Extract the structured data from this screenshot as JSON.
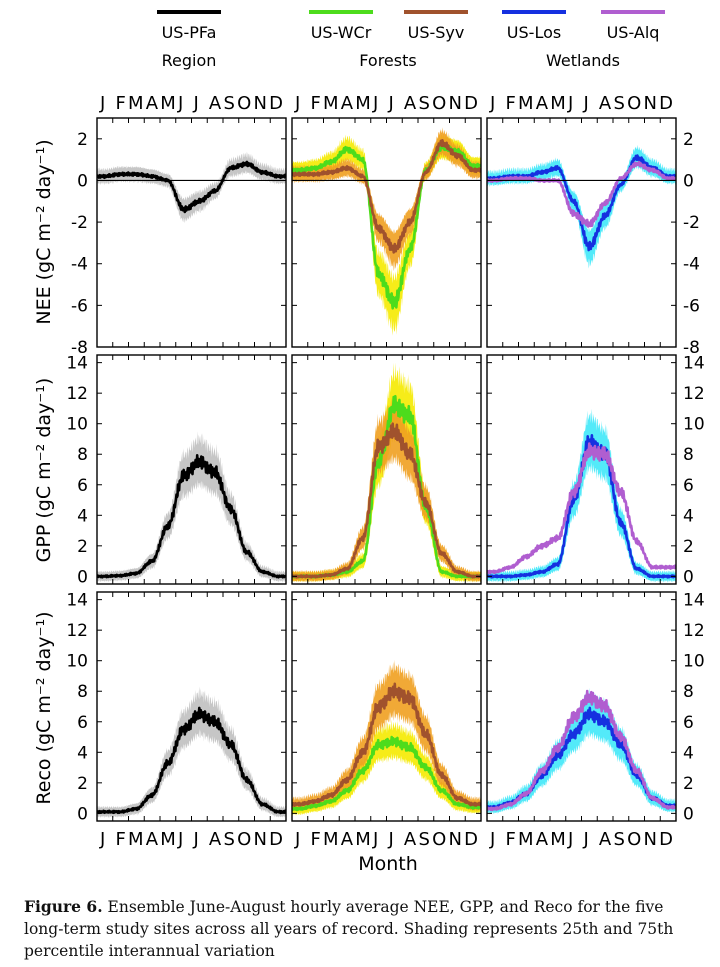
{
  "legend": {
    "items": [
      {
        "name": "US-PFa",
        "color": "#000000"
      },
      {
        "name": "US-WCr",
        "color": "#4ddc1c"
      },
      {
        "name": "US-Syv",
        "color": "#a0522d"
      },
      {
        "name": "US-Los",
        "color": "#1530e0"
      },
      {
        "name": "US-Alq",
        "color": "#b05ed0"
      }
    ],
    "groups": [
      "Region",
      "Forests",
      "Wetlands"
    ]
  },
  "axes": {
    "month_ticks": "J FMAMJ J ASOND",
    "xlabel": "Month",
    "ylabels": [
      "NEE (gC m⁻² day⁻¹)",
      "GPP (gC m⁻² day⁻¹)",
      "Reco (gC m⁻² day⁻¹)"
    ]
  },
  "caption": {
    "label": "Figure 6.",
    "text": "Ensemble June-August hourly average NEE, GPP, and Reco for the five long-term study sites across all years of record. Shading represents 25th and 75th percentile interannual variation"
  },
  "chart_data": {
    "type": "line",
    "x_unit": "month",
    "x": [
      0.5,
      1.5,
      2.5,
      3.5,
      4.5,
      5.5,
      6.5,
      7.5,
      8.5,
      9.5,
      10.5,
      11.5
    ],
    "xlim": [
      0,
      12
    ],
    "panels": [
      {
        "row": "NEE",
        "column": "Region",
        "ylim": [
          -8,
          3
        ],
        "zero_line": true,
        "series": [
          {
            "name": "US-PFa",
            "color": "#000000",
            "band": "#c0c0c0",
            "values": [
              0.2,
              0.3,
              0.3,
              0.2,
              0.0,
              -1.4,
              -1.0,
              -0.5,
              0.6,
              0.8,
              0.4,
              0.2
            ]
          }
        ]
      },
      {
        "row": "NEE",
        "column": "Forests",
        "ylim": [
          -8,
          3
        ],
        "zero_line": true,
        "series": [
          {
            "name": "US-WCr",
            "color": "#4ddc1c",
            "band": "#f5ea00",
            "values": [
              0.5,
              0.6,
              0.9,
              1.5,
              1.0,
              -4.5,
              -5.9,
              -3.3,
              0.5,
              1.6,
              1.4,
              0.7
            ]
          },
          {
            "name": "US-Syv",
            "color": "#a0522d",
            "band": "#f0a020",
            "values": [
              0.3,
              0.3,
              0.4,
              0.6,
              0.2,
              -2.3,
              -3.3,
              -2.0,
              0.4,
              1.8,
              1.2,
              0.5
            ]
          }
        ]
      },
      {
        "row": "NEE",
        "column": "Wetlands",
        "ylim": [
          -8,
          3
        ],
        "zero_line": true,
        "series": [
          {
            "name": "US-Los",
            "color": "#1530e0",
            "band": "#40e8f8",
            "values": [
              0.1,
              0.2,
              0.2,
              0.4,
              0.6,
              -1.0,
              -3.2,
              -1.7,
              -0.2,
              1.1,
              0.6,
              0.2
            ]
          },
          {
            "name": "US-Alq",
            "color": "#b05ed0",
            "band": null,
            "values": [
              0.0,
              0.1,
              0.1,
              0.0,
              0.0,
              -1.6,
              -2.1,
              -1.1,
              0.1,
              0.8,
              0.5,
              0.1
            ]
          }
        ]
      },
      {
        "row": "GPP",
        "column": "Region",
        "ylim": [
          -0.5,
          14.5
        ],
        "series": [
          {
            "name": "US-PFa",
            "color": "#000000",
            "band": "#c0c0c0",
            "values": [
              0.0,
              0.05,
              0.2,
              1.0,
              3.3,
              6.6,
              7.5,
              6.8,
              4.4,
              1.6,
              0.3,
              0.0
            ]
          }
        ]
      },
      {
        "row": "GPP",
        "column": "Forests",
        "ylim": [
          -0.5,
          14.5
        ],
        "series": [
          {
            "name": "US-WCr",
            "color": "#4ddc1c",
            "band": "#f5ea00",
            "values": [
              0.0,
              0.0,
              0.1,
              0.3,
              1.0,
              7.5,
              11.2,
              10.5,
              4.5,
              0.3,
              0.0,
              0.0
            ]
          },
          {
            "name": "US-Syv",
            "color": "#a0522d",
            "band": "#f0a020",
            "values": [
              0.0,
              0.0,
              0.1,
              0.5,
              2.5,
              8.5,
              9.5,
              8.0,
              4.8,
              1.5,
              0.3,
              0.0
            ]
          }
        ]
      },
      {
        "row": "GPP",
        "column": "Wetlands",
        "ylim": [
          -0.5,
          14.5
        ],
        "series": [
          {
            "name": "US-Los",
            "color": "#1530e0",
            "band": "#40e8f8",
            "values": [
              0.0,
              0.0,
              0.1,
              0.3,
              0.8,
              5.0,
              8.8,
              8.0,
              3.5,
              0.5,
              0.0,
              0.0
            ]
          },
          {
            "name": "US-Alq",
            "color": "#b05ed0",
            "band": null,
            "values": [
              0.3,
              0.6,
              1.3,
              2.0,
              2.5,
              5.5,
              8.2,
              8.0,
              5.5,
              2.3,
              0.6,
              0.6
            ]
          }
        ]
      },
      {
        "row": "Reco",
        "column": "Region",
        "ylim": [
          -0.5,
          14.5
        ],
        "series": [
          {
            "name": "US-PFa",
            "color": "#000000",
            "band": "#c0c0c0",
            "values": [
              0.1,
              0.1,
              0.3,
              1.2,
              3.3,
              5.5,
              6.5,
              6.0,
              4.5,
              2.2,
              0.6,
              0.1
            ]
          }
        ]
      },
      {
        "row": "Reco",
        "column": "Forests",
        "ylim": [
          -0.5,
          14.5
        ],
        "series": [
          {
            "name": "US-WCr",
            "color": "#4ddc1c",
            "band": "#f5ea00",
            "values": [
              0.3,
              0.5,
              0.8,
              1.5,
              2.8,
              4.5,
              4.7,
              4.3,
              3.0,
              1.5,
              0.6,
              0.4
            ]
          },
          {
            "name": "US-Syv",
            "color": "#a0522d",
            "band": "#f0a020",
            "values": [
              0.6,
              0.8,
              1.2,
              2.2,
              4.0,
              7.0,
              8.0,
              7.5,
              5.2,
              2.5,
              1.0,
              0.6
            ]
          }
        ]
      },
      {
        "row": "Reco",
        "column": "Wetlands",
        "ylim": [
          -0.5,
          14.5
        ],
        "series": [
          {
            "name": "US-Los",
            "color": "#1530e0",
            "band": "#40e8f8",
            "values": [
              0.4,
              0.7,
              1.3,
              2.5,
              3.8,
              5.2,
              6.5,
              6.0,
              4.5,
              2.5,
              1.0,
              0.5
            ]
          },
          {
            "name": "US-Alq",
            "color": "#b05ed0",
            "band": null,
            "values": [
              0.3,
              0.6,
              1.3,
              2.8,
              4.3,
              6.3,
              7.6,
              7.0,
              5.0,
              2.8,
              1.0,
              0.4
            ]
          }
        ]
      }
    ]
  }
}
